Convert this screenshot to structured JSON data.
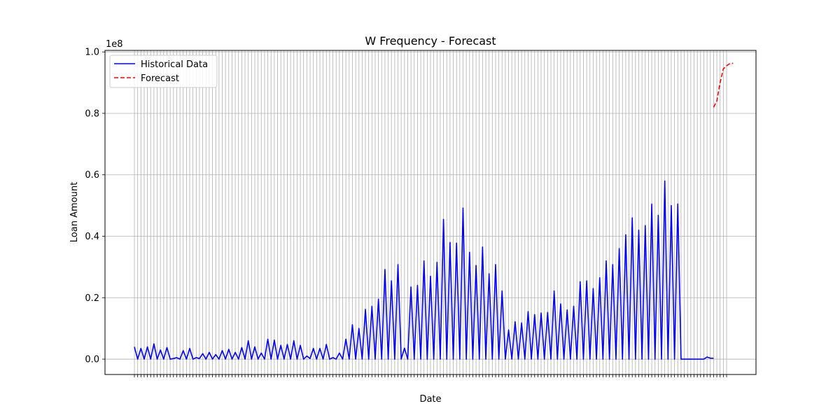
{
  "chart_data": {
    "type": "line",
    "title": "W Frequency - Forecast",
    "xlabel": "Date",
    "ylabel": "Loan Amount",
    "y_scale_label": "1e8",
    "y_ticks": [
      "0.0",
      "0.2",
      "0.4",
      "0.6",
      "0.8",
      "1.0"
    ],
    "ylim": [
      -0.05,
      1.005
    ],
    "grid": true,
    "legend_position": "upper-left",
    "period_count": 183,
    "series": [
      {
        "name": "Historical Data",
        "color": "#0000ff",
        "style": "solid",
        "start_index": 0,
        "values": [
          0.04,
          0,
          0.035,
          0,
          0.04,
          0,
          0.05,
          0,
          0.03,
          0,
          0.038,
          0,
          0.002,
          0.005,
          0,
          0.028,
          0,
          0.035,
          0,
          0.005,
          0.002,
          0.018,
          0,
          0.022,
          0,
          0.015,
          0,
          0.028,
          0,
          0.032,
          0,
          0.022,
          0,
          0.038,
          0,
          0.06,
          0,
          0.04,
          0,
          0.02,
          0,
          0.065,
          0,
          0.062,
          0,
          0.045,
          0,
          0.048,
          0,
          0.06,
          0,
          0.045,
          0,
          0.01,
          0.002,
          0.035,
          0,
          0.035,
          0,
          0.048,
          0,
          0.005,
          0,
          0.02,
          0,
          0.065,
          0,
          0.112,
          0,
          0.1,
          0,
          0.162,
          0,
          0.172,
          0,
          0.195,
          0,
          0.292,
          0,
          0.255,
          0,
          0.308,
          0,
          0.036,
          0,
          0.235,
          0,
          0.24,
          0,
          0.32,
          0,
          0.27,
          0,
          0.315,
          0,
          0.455,
          0,
          0.38,
          0,
          0.378,
          0,
          0.492,
          0,
          0.348,
          0,
          0.305,
          0,
          0.365,
          0,
          0.278,
          0,
          0.308,
          0,
          0.222,
          0,
          0.095,
          0,
          0.122,
          0,
          0.118,
          0,
          0.155,
          0,
          0.145,
          0,
          0.15,
          0,
          0.152,
          0,
          0.222,
          0,
          0.18,
          0,
          0.16,
          0,
          0.172,
          0,
          0.252,
          0,
          0.255,
          0,
          0.23,
          0,
          0.265,
          0,
          0.32,
          0,
          0.308,
          0,
          0.36,
          0,
          0.405,
          0,
          0.46,
          0,
          0.42,
          0,
          0.435,
          0,
          0.505,
          0,
          0.468,
          0,
          0.58,
          0,
          0.5,
          0,
          0.505,
          0,
          0,
          0,
          0,
          0,
          0,
          0,
          0,
          0.007,
          0.003,
          0.003
        ]
      },
      {
        "name": "Forecast",
        "color": "#ff0000",
        "style": "dashed",
        "start_index": 178,
        "values": [
          0.82,
          0.84,
          0.9,
          0.945,
          0.955,
          0.962,
          0.963
        ]
      }
    ]
  }
}
